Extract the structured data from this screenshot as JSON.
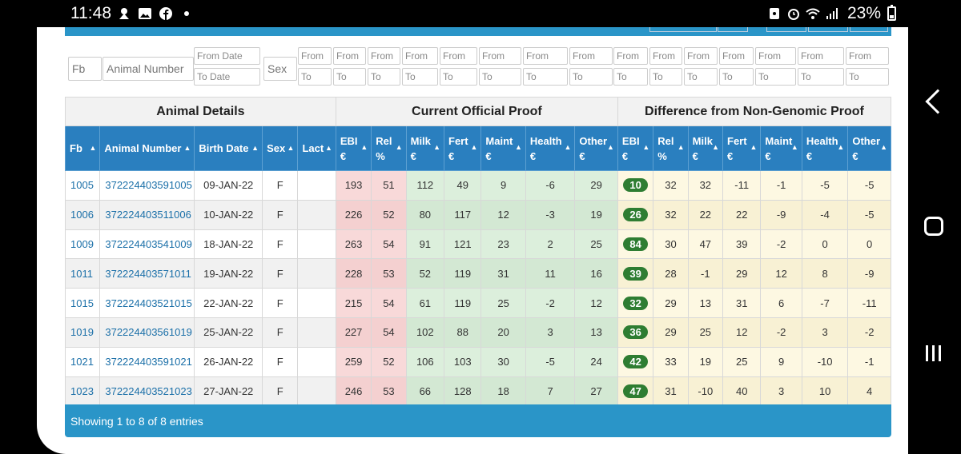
{
  "status": {
    "time": "11:48",
    "battery": "23%"
  },
  "filters": {
    "fb": "Fb",
    "animal_number": "Animal Number",
    "from_date": "From Date",
    "to_date": "To Date",
    "sex": "Sex",
    "from": "From",
    "to": "To"
  },
  "groups": {
    "animal_details": "Animal Details",
    "current_proof": "Current Official Proof",
    "difference": "Difference from Non-Genomic Proof"
  },
  "columns": [
    {
      "l1": "Fb",
      "l2": ""
    },
    {
      "l1": "Animal Number",
      "l2": ""
    },
    {
      "l1": "Birth Date",
      "l2": ""
    },
    {
      "l1": "Sex",
      "l2": ""
    },
    {
      "l1": "Lact",
      "l2": ""
    },
    {
      "l1": "EBI",
      "l2": "€"
    },
    {
      "l1": "Rel",
      "l2": "%"
    },
    {
      "l1": "Milk",
      "l2": "€"
    },
    {
      "l1": "Fert",
      "l2": "€"
    },
    {
      "l1": "Maint",
      "l2": "€"
    },
    {
      "l1": "Health",
      "l2": "€"
    },
    {
      "l1": "Other",
      "l2": "€"
    },
    {
      "l1": "EBI",
      "l2": "€"
    },
    {
      "l1": "Rel",
      "l2": "%"
    },
    {
      "l1": "Milk",
      "l2": "€"
    },
    {
      "l1": "Fert",
      "l2": "€"
    },
    {
      "l1": "Maint",
      "l2": "€"
    },
    {
      "l1": "Health",
      "l2": "€"
    },
    {
      "l1": "Other",
      "l2": "€"
    }
  ],
  "rows": [
    [
      "1005",
      "372224403591005",
      "09-JAN-22",
      "F",
      "",
      "193",
      "51",
      "112",
      "49",
      "9",
      "-6",
      "29",
      "10",
      "32",
      "32",
      "-11",
      "-1",
      "-5",
      "-5"
    ],
    [
      "1006",
      "372224403511006",
      "10-JAN-22",
      "F",
      "",
      "226",
      "52",
      "80",
      "117",
      "12",
      "-3",
      "19",
      "26",
      "32",
      "22",
      "22",
      "-9",
      "-4",
      "-5"
    ],
    [
      "1009",
      "372224403541009",
      "18-JAN-22",
      "F",
      "",
      "263",
      "54",
      "91",
      "121",
      "23",
      "2",
      "25",
      "84",
      "30",
      "47",
      "39",
      "-2",
      "0",
      "0"
    ],
    [
      "1011",
      "372224403571011",
      "19-JAN-22",
      "F",
      "",
      "228",
      "53",
      "52",
      "119",
      "31",
      "11",
      "16",
      "39",
      "28",
      "-1",
      "29",
      "12",
      "8",
      "-9"
    ],
    [
      "1015",
      "372224403521015",
      "22-JAN-22",
      "F",
      "",
      "215",
      "54",
      "61",
      "119",
      "25",
      "-2",
      "12",
      "32",
      "29",
      "13",
      "31",
      "6",
      "-7",
      "-11"
    ],
    [
      "1019",
      "372224403561019",
      "25-JAN-22",
      "F",
      "",
      "227",
      "54",
      "102",
      "88",
      "20",
      "3",
      "13",
      "36",
      "29",
      "25",
      "12",
      "-2",
      "3",
      "-2"
    ],
    [
      "1021",
      "372224403591021",
      "26-JAN-22",
      "F",
      "",
      "259",
      "52",
      "106",
      "103",
      "30",
      "-5",
      "24",
      "42",
      "33",
      "19",
      "25",
      "9",
      "-10",
      "-1"
    ],
    [
      "1023",
      "372224403521023",
      "27-JAN-22",
      "F",
      "",
      "246",
      "53",
      "66",
      "128",
      "18",
      "7",
      "27",
      "47",
      "31",
      "-10",
      "40",
      "3",
      "10",
      "4"
    ]
  ],
  "footer": "Showing 1 to 8 of 8 entries",
  "colors": {
    "header": "#2a7fbf",
    "band": "#2a95c8",
    "ebi_badge": "#2e7d32",
    "red_cell": "#f8d9d9",
    "green_cell": "#dcefdc",
    "yellow_cell": "#fdf8e2"
  }
}
